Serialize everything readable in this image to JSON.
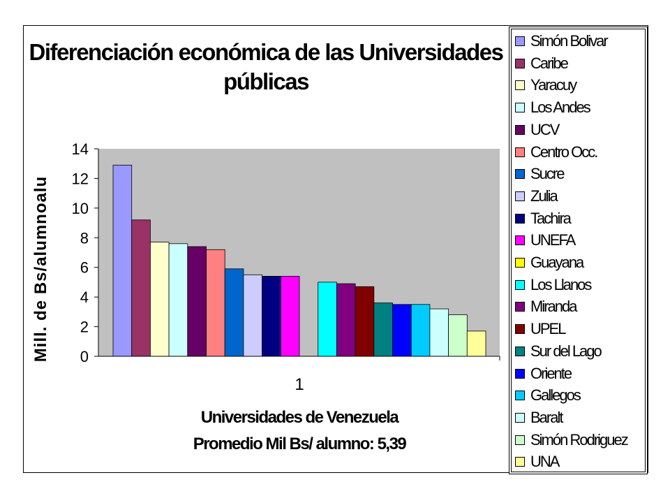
{
  "chart_data": {
    "type": "bar",
    "title": "Diferenciación económica de las Universidades públicas",
    "title_lines": [
      "Diferenciación económica de las Universidades",
      "públicas"
    ],
    "ylabel": "Mill. de Bs/alumnoalu",
    "xlabel": "Universidades de Venezuela",
    "xlabel_sub": "Promedio Mil Bs/ alumno: 5,39",
    "categories": [
      "1"
    ],
    "ylim": [
      0,
      14
    ],
    "yticks": [
      "0",
      "2",
      "4",
      "6",
      "8",
      "10",
      "12",
      "14"
    ],
    "grid": false,
    "plot_background": "#c0c0c0",
    "legend_position": "right",
    "series": [
      {
        "name": "Simón Bolivar",
        "value": 12.9,
        "color": "#9999ff"
      },
      {
        "name": "Caribe",
        "value": 9.2,
        "color": "#993366"
      },
      {
        "name": "Yaracuy",
        "value": 7.7,
        "color": "#ffffcc"
      },
      {
        "name": "Los Andes",
        "value": 7.6,
        "color": "#ccffff"
      },
      {
        "name": "UCV",
        "value": 7.4,
        "color": "#660066"
      },
      {
        "name": "Centro Occ.",
        "value": 7.2,
        "color": "#ff8080"
      },
      {
        "name": "Sucre",
        "value": 5.9,
        "color": "#0066cc"
      },
      {
        "name": "Zulia",
        "value": 5.5,
        "color": "#ccccff"
      },
      {
        "name": "Tachira",
        "value": 5.4,
        "color": "#000080"
      },
      {
        "name": "UNEFA",
        "value": 5.4,
        "color": "#ff00ff"
      },
      {
        "name": "Guayana",
        "value": 0,
        "color": "#ffff00"
      },
      {
        "name": "Los Llanos",
        "value": 5.0,
        "color": "#00ffff"
      },
      {
        "name": "Miranda",
        "value": 4.9,
        "color": "#800080"
      },
      {
        "name": "UPEL",
        "value": 4.7,
        "color": "#800000"
      },
      {
        "name": "Sur del Lago",
        "value": 3.6,
        "color": "#008080"
      },
      {
        "name": "Oriente",
        "value": 3.5,
        "color": "#0000ff"
      },
      {
        "name": "Gallegos",
        "value": 3.5,
        "color": "#00ccff"
      },
      {
        "name": "Baralt",
        "value": 3.2,
        "color": "#ccffff"
      },
      {
        "name": "Simón Rodriguez",
        "value": 2.8,
        "color": "#ccffcc"
      },
      {
        "name": "UNA",
        "value": 1.7,
        "color": "#ffff99"
      }
    ]
  }
}
